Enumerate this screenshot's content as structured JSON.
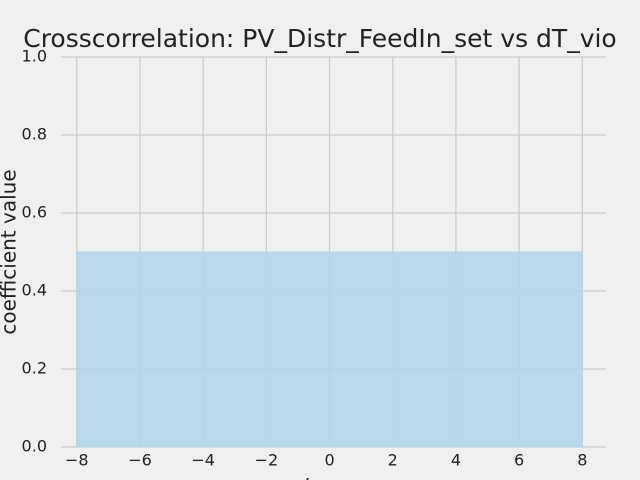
{
  "chart_data": {
    "type": "area",
    "title": "Crosscorrelation: PV_Distr_FeedIn_set vs dT_vio",
    "xlabel": "lag",
    "ylabel": "coefficient value",
    "x": [
      -8,
      8
    ],
    "values": [
      0.5,
      0.5
    ],
    "color": "#b3d6ea",
    "xlim": [
      -8.5,
      8.75
    ],
    "xticks": [
      -8,
      -6,
      -4,
      -2,
      0,
      2,
      4,
      6,
      8
    ],
    "ylim": [
      0,
      1
    ],
    "yticks": [
      0.0,
      0.2,
      0.4,
      0.6,
      0.8,
      1.0
    ],
    "grid": true
  }
}
